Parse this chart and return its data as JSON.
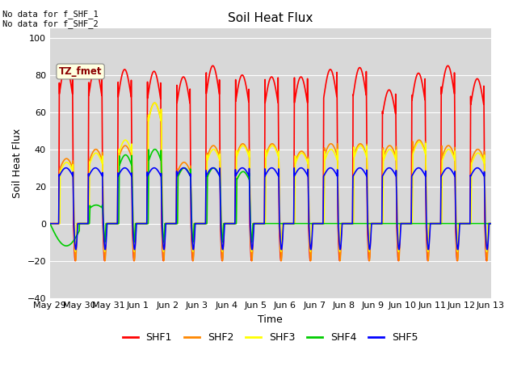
{
  "title": "Soil Heat Flux",
  "xlabel": "Time",
  "ylabel": "Soil Heat Flux",
  "ylim": [
    -40,
    105
  ],
  "yticks": [
    -40,
    -20,
    0,
    20,
    40,
    60,
    80,
    100
  ],
  "plot_bg_color": "#d8d8d8",
  "annotation_text": "No data for f_SHF_1\nNo data for f_SHF_2",
  "tz_label": "TZ_fmet",
  "legend_entries": [
    "SHF1",
    "SHF2",
    "SHF3",
    "SHF4",
    "SHF5"
  ],
  "legend_colors": [
    "#ff0000",
    "#ff8800",
    "#ffff00",
    "#00cc00",
    "#0000ff"
  ],
  "date_labels": [
    "May 29",
    "May 30",
    "May 31",
    "Jun 1",
    "Jun 2",
    "Jun 3",
    "Jun 4",
    "Jun 5",
    "Jun 6",
    "Jun 7",
    "Jun 8",
    "Jun 9",
    "Jun 10",
    "Jun 11",
    "Jun 12",
    "Jun 13"
  ],
  "n_days": 15,
  "colors": {
    "SHF1": "#ff0000",
    "SHF2": "#ff8800",
    "SHF3": "#ffff00",
    "SHF4": "#00cc00",
    "SHF5": "#0000ff"
  },
  "line_width": 1.2,
  "shf1_peaks": [
    85,
    84,
    83,
    82,
    79,
    85,
    80,
    79,
    79,
    83,
    84,
    72,
    81,
    85,
    78
  ],
  "shf2_peaks": [
    35,
    40,
    42,
    65,
    33,
    42,
    43,
    43,
    39,
    43,
    43,
    42,
    45,
    42,
    40
  ],
  "shf3_peaks": [
    33,
    38,
    45,
    65,
    30,
    40,
    42,
    42,
    38,
    40,
    42,
    40,
    44,
    40,
    38
  ],
  "shf4_active_days": 7,
  "shf4_peaks": [
    -12,
    10,
    37,
    40,
    30,
    30,
    28,
    0,
    0,
    0,
    0,
    0,
    0,
    0,
    0
  ],
  "shf5_peak": 30
}
